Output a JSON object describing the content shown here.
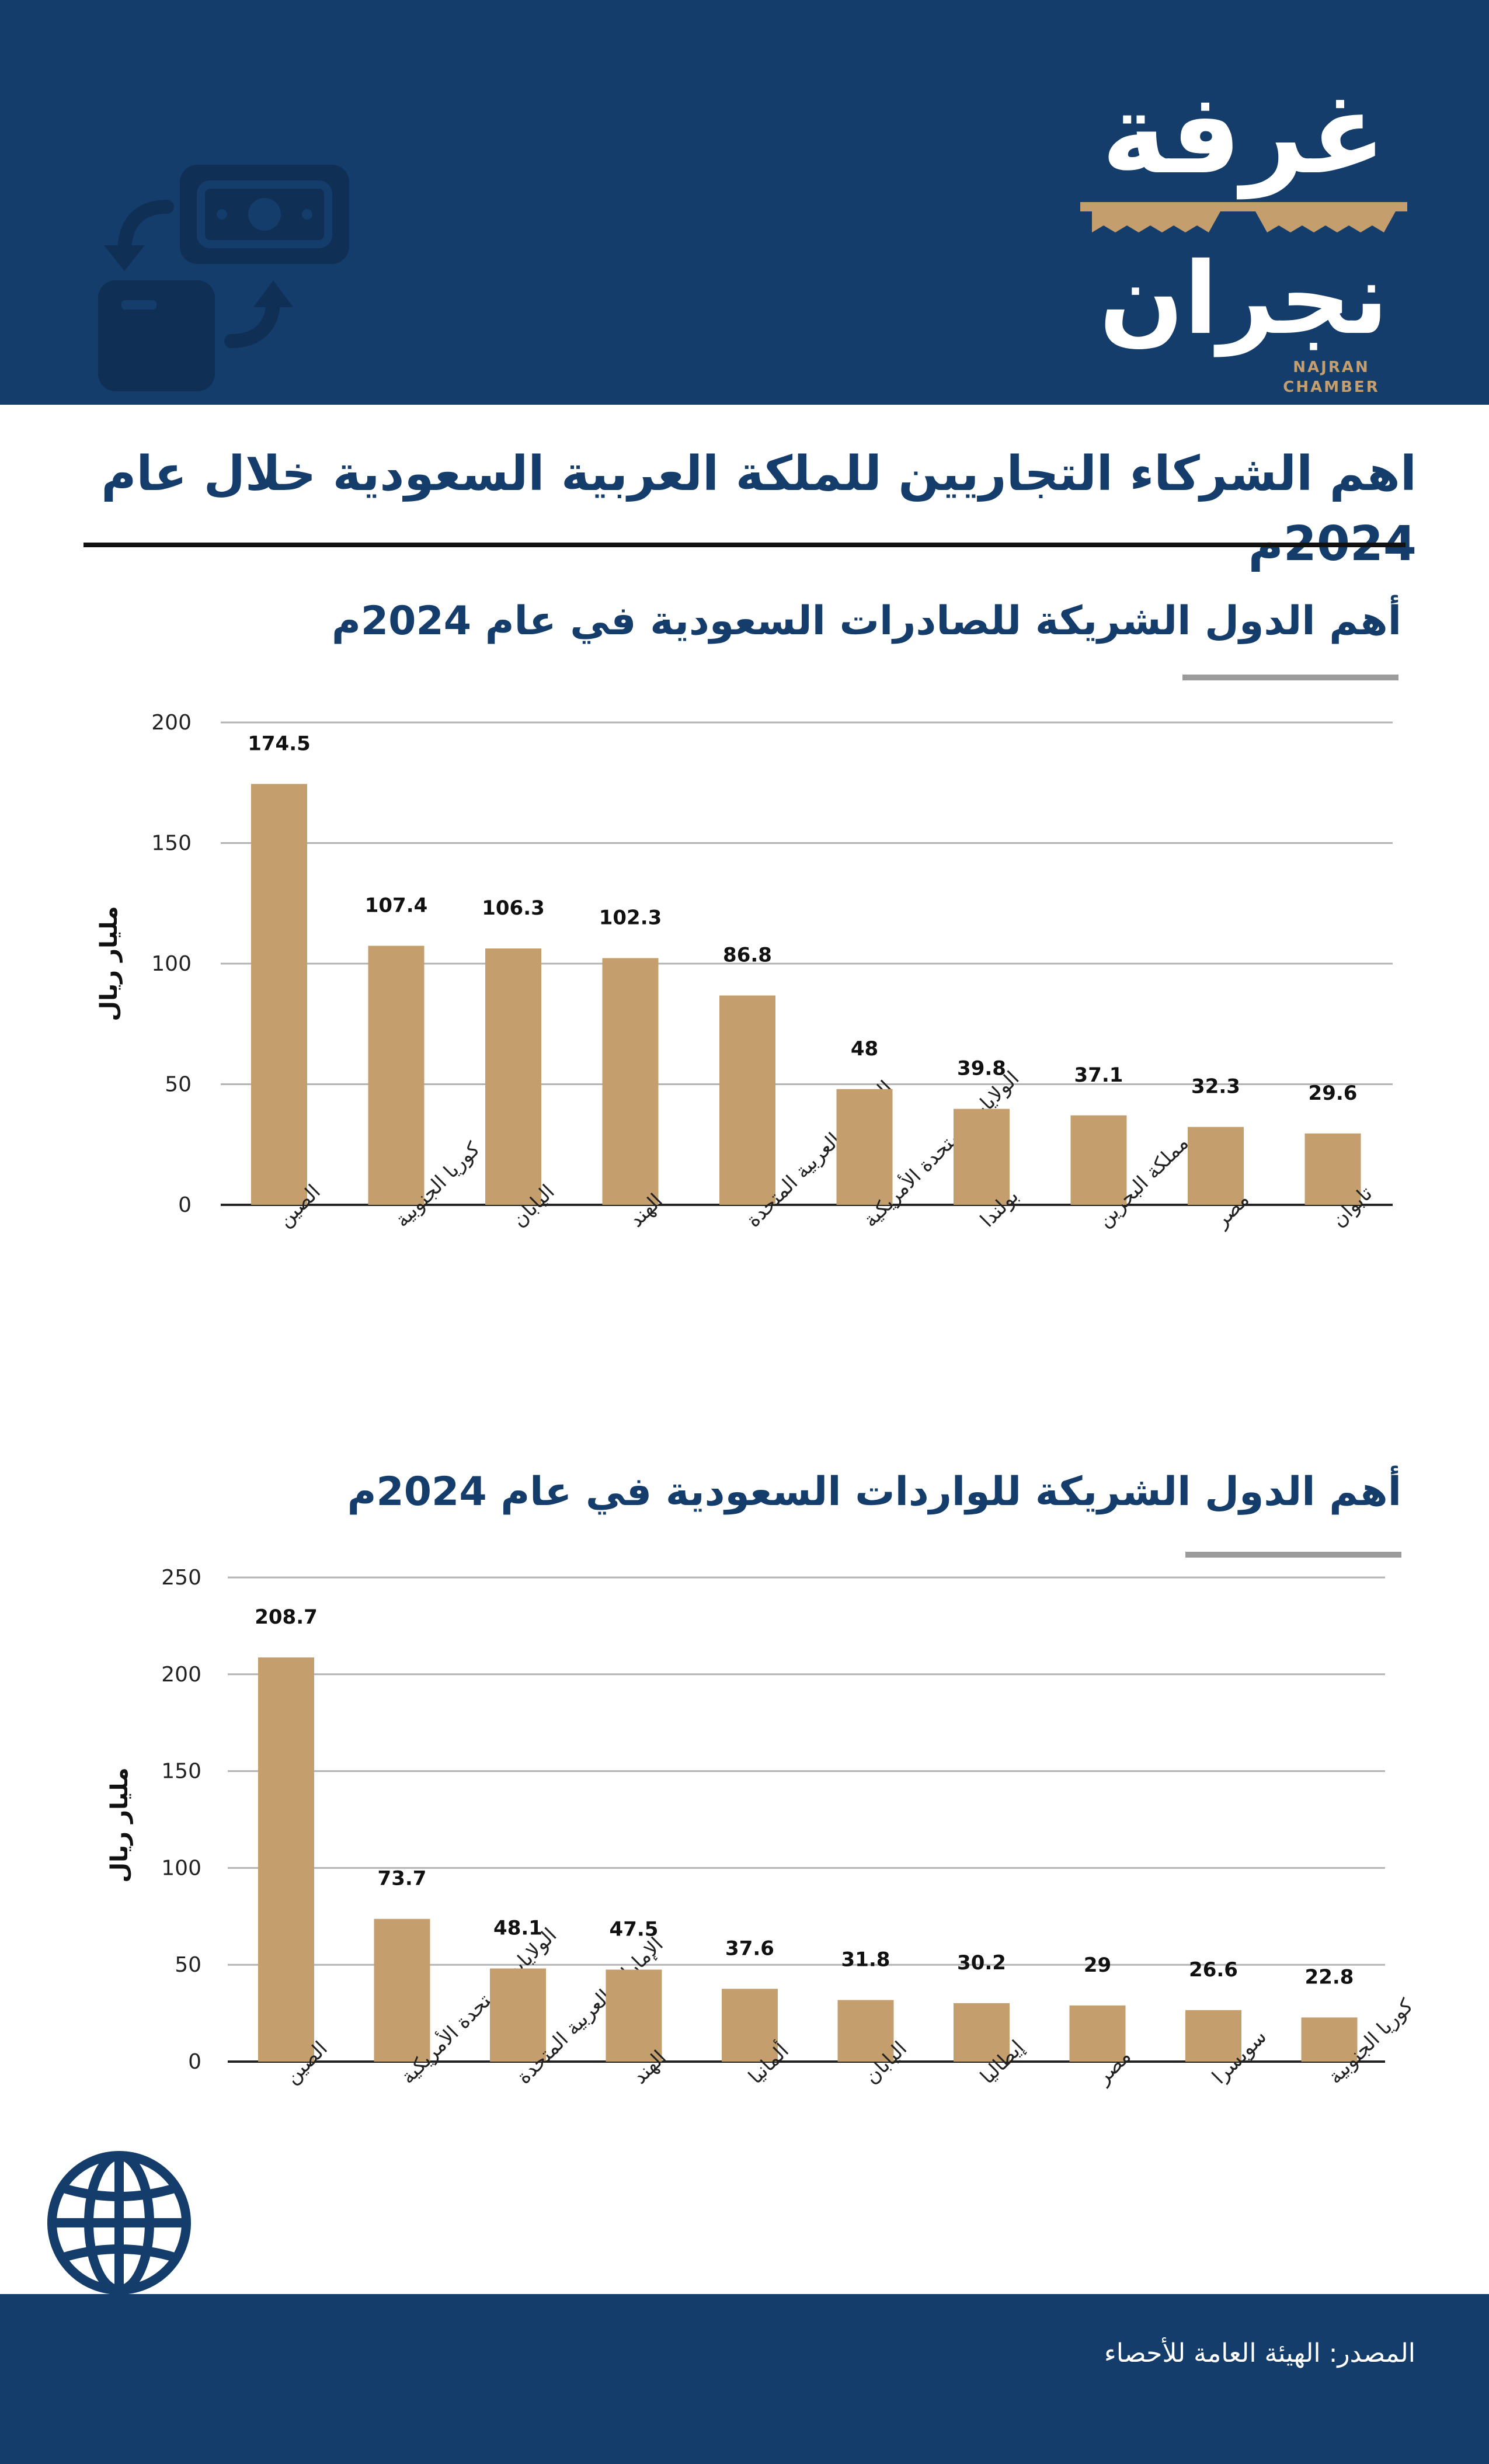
{
  "brand": {
    "logo_arabic_line1": "غرفة",
    "logo_arabic_line2": "نجران",
    "logo_english": "NAJRAN CHAMBER",
    "navy": "#143d6c",
    "gold": "#c49f6d",
    "icon_money": "money-exchange-icon",
    "icon_globe": "globe-icon"
  },
  "page": {
    "main_title": "اهم الشركاء التجاريين للملكة العربية السعودية خلال عام 2024م",
    "source": "المصدر: الهيئة العامة للأحصاء"
  },
  "chart_data": [
    {
      "type": "bar",
      "title": "أهم الدول الشريكة للصادرات السعودية في عام 2024م",
      "ylabel": "مليار ريال",
      "xlabel": "",
      "ylim": [
        0,
        200
      ],
      "yticks": [
        0,
        50,
        100,
        150,
        200
      ],
      "grid": true,
      "categories": [
        "الصين",
        "كوريا الجنوبية",
        "اليابان",
        "الهند",
        "الإمارات العربية المتحدة",
        "الولايات المتحدة الأمريكية",
        "بولندا",
        "مملكة البحرين",
        "مصر",
        "تايوان"
      ],
      "values": [
        174.5,
        107.4,
        106.3,
        102.3,
        86.8,
        48,
        39.8,
        37.1,
        32.3,
        29.6
      ],
      "value_labels": [
        "174.5",
        "107.4",
        "106.3",
        "102.3",
        "86.8",
        "48",
        "39.8",
        "37.1",
        "32.3",
        "29.6"
      ],
      "bar_color": "#c49f6d"
    },
    {
      "type": "bar",
      "title": "أهم الدول الشريكة للواردات السعودية في عام 2024م",
      "ylabel": "مليار ريال",
      "xlabel": "",
      "ylim": [
        0,
        250
      ],
      "yticks": [
        0,
        50,
        100,
        150,
        200,
        250
      ],
      "grid": true,
      "categories": [
        "الصين",
        "الولايات المتحدة الأمريكية",
        "الإمارات العربية المتحدة",
        "الهند",
        "ألمانيا",
        "اليابان",
        "إيطاليا",
        "مصر",
        "سويسرا",
        "كوريا الجنوبية"
      ],
      "values": [
        208.7,
        73.7,
        48.1,
        47.5,
        37.6,
        31.8,
        30.2,
        29,
        26.6,
        22.8
      ],
      "value_labels": [
        "208.7",
        "73.7",
        "48.1",
        "47.5",
        "37.6",
        "31.8",
        "30.2",
        "29",
        "26.6",
        "22.8"
      ],
      "bar_color": "#c49f6d"
    }
  ]
}
